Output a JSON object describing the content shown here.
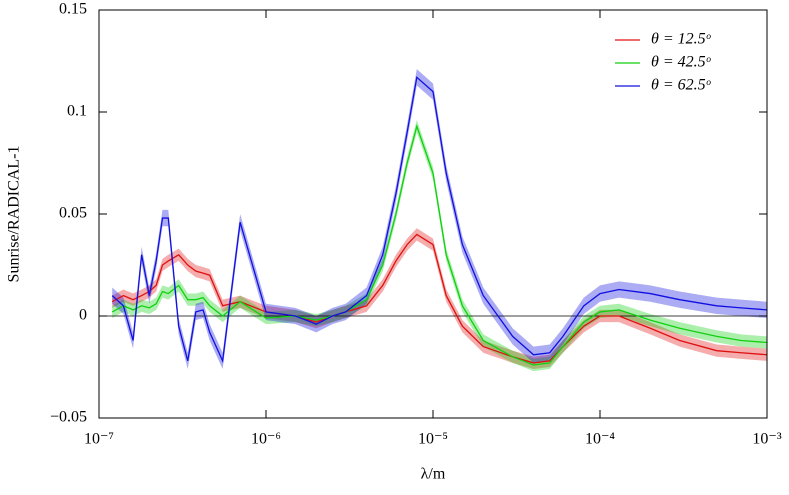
{
  "chart_data": {
    "type": "line",
    "xlabel": "λ/m",
    "ylabel": "Sunrise/RADICAL-1",
    "xscale": "log",
    "x": [
      1.2e-07,
      1.4e-07,
      1.6e-07,
      1.8e-07,
      2e-07,
      2.2e-07,
      2.4e-07,
      2.6e-07,
      3e-07,
      3.4e-07,
      3.8e-07,
      4.2e-07,
      4.6e-07,
      5.5e-07,
      7e-07,
      1e-06,
      1.5e-06,
      2e-06,
      2.5e-06,
      3e-06,
      4e-06,
      5e-06,
      6e-06,
      7e-06,
      8e-06,
      1e-05,
      1.2e-05,
      1.5e-05,
      2e-05,
      3e-05,
      4e-05,
      5e-05,
      6e-05,
      8e-05,
      0.0001,
      0.00013,
      0.0002,
      0.0003,
      0.0005,
      0.0007,
      0.001
    ],
    "series": [
      {
        "name": "θ = 12.5ᵒ",
        "color": "#e01010",
        "error": 0.003,
        "values": [
          0.007,
          0.01,
          0.008,
          0.01,
          0.012,
          0.015,
          0.025,
          0.027,
          0.03,
          0.025,
          0.022,
          0.021,
          0.02,
          0.005,
          0.007,
          0.002,
          0,
          -0.003,
          0,
          0.002,
          0.005,
          0.015,
          0.027,
          0.035,
          0.04,
          0.035,
          0.01,
          -0.005,
          -0.015,
          -0.02,
          -0.023,
          -0.022,
          -0.015,
          -0.005,
          0,
          0,
          -0.006,
          -0.012,
          -0.017,
          -0.018,
          -0.019
        ]
      },
      {
        "name": "θ = 42.5ᵒ",
        "color": "#10d010",
        "error": 0.003,
        "values": [
          0.002,
          0.005,
          0.003,
          0.005,
          0.004,
          0.006,
          0.012,
          0.011,
          0.015,
          0.008,
          0.008,
          0.009,
          0.005,
          0,
          0.007,
          -0.001,
          0,
          -0.002,
          0,
          0.002,
          0.008,
          0.025,
          0.05,
          0.075,
          0.093,
          0.07,
          0.03,
          0.005,
          -0.012,
          -0.02,
          -0.024,
          -0.023,
          -0.015,
          -0.003,
          0.002,
          0.003,
          -0.002,
          -0.006,
          -0.01,
          -0.012,
          -0.013
        ]
      },
      {
        "name": "θ = 62.5ᵒ",
        "color": "#1010e0",
        "error": 0.004,
        "values": [
          0.01,
          0.005,
          -0.012,
          0.03,
          0.01,
          0.027,
          0.048,
          0.048,
          -0.005,
          -0.022,
          0.002,
          0.003,
          -0.008,
          -0.022,
          0.046,
          0.002,
          0,
          -0.004,
          0,
          0.002,
          0.01,
          0.03,
          0.06,
          0.09,
          0.117,
          0.11,
          0.07,
          0.035,
          0.01,
          -0.01,
          -0.019,
          -0.018,
          -0.01,
          0.005,
          0.011,
          0.013,
          0.011,
          0.008,
          0.005,
          0.004,
          0.003
        ]
      }
    ],
    "xlim": [
      1e-07,
      0.001
    ],
    "xticks": [
      {
        "value": 1e-07,
        "label": "10⁻⁷"
      },
      {
        "value": 1e-06,
        "label": "10⁻⁶"
      },
      {
        "value": 1e-05,
        "label": "10⁻⁵"
      },
      {
        "value": 0.0001,
        "label": "10⁻⁴"
      },
      {
        "value": 0.001,
        "label": "10⁻³"
      }
    ],
    "ylim": [
      -0.05,
      0.15
    ],
    "yticks": [
      {
        "value": -0.05,
        "label": "−0.05"
      },
      0,
      0.05,
      0.1,
      0.15
    ],
    "legend": "upper right"
  }
}
